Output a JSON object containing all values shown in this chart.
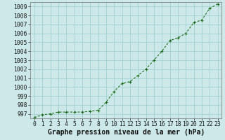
{
  "x": [
    0,
    1,
    2,
    3,
    4,
    5,
    6,
    7,
    8,
    9,
    10,
    11,
    12,
    13,
    14,
    15,
    16,
    17,
    18,
    19,
    20,
    21,
    22,
    23
  ],
  "y": [
    996.6,
    996.9,
    997.0,
    997.2,
    997.2,
    997.2,
    997.2,
    997.3,
    997.4,
    998.3,
    999.5,
    1000.4,
    1000.6,
    1001.3,
    1002.0,
    1003.0,
    1004.0,
    1005.2,
    1005.5,
    1006.0,
    1007.2,
    1007.5,
    1008.8,
    1009.3
  ],
  "ylim": [
    996.5,
    1009.5
  ],
  "yticks": [
    997,
    998,
    999,
    1000,
    1001,
    1002,
    1003,
    1004,
    1005,
    1006,
    1007,
    1008,
    1009
  ],
  "xticks": [
    0,
    1,
    2,
    3,
    4,
    5,
    6,
    7,
    8,
    9,
    10,
    11,
    12,
    13,
    14,
    15,
    16,
    17,
    18,
    19,
    20,
    21,
    22,
    23
  ],
  "line_color": "#1a6b1a",
  "marker_color": "#1a6b1a",
  "background_color": "#cce8e8",
  "grid_color": "#99cccc",
  "axis_color": "#888888",
  "xlabel": "Graphe pression niveau de la mer (hPa)",
  "xlabel_fontsize": 7.0,
  "tick_fontsize": 5.8,
  "figure_bg": "#cce8e8"
}
